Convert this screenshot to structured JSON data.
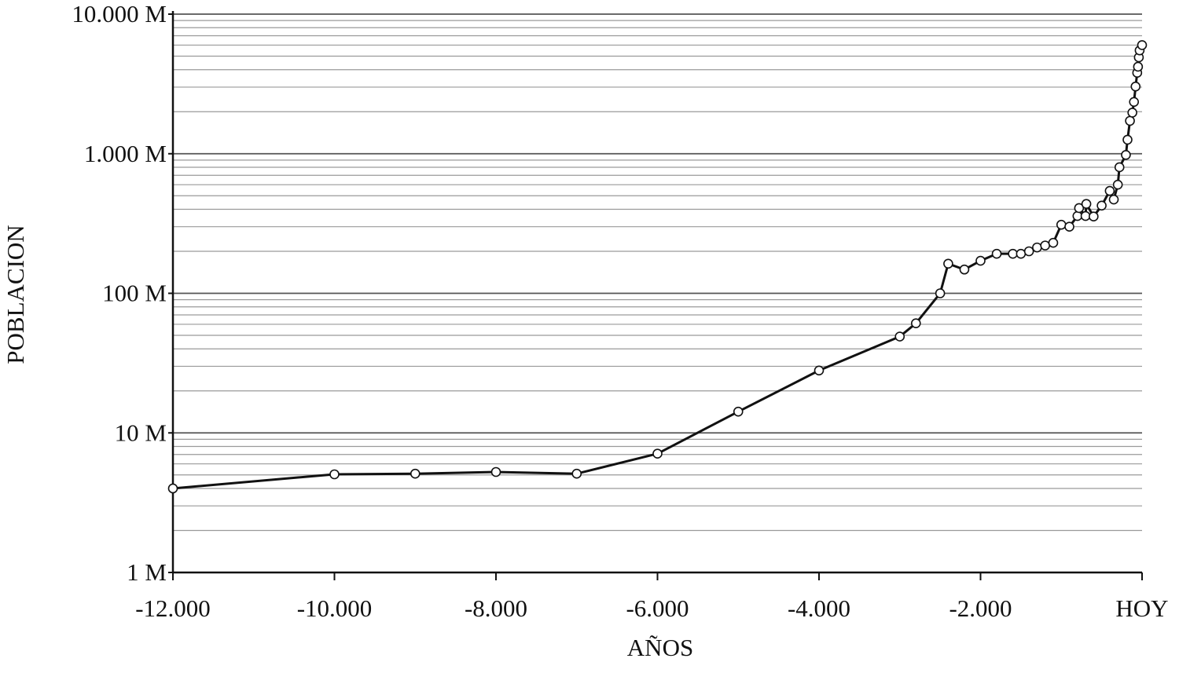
{
  "chart_data": {
    "type": "line",
    "x_label": "AÑOS",
    "y_label": "POBLACION",
    "log_y": true,
    "grid": true,
    "x": [
      -12000,
      -10000,
      -9000,
      -8000,
      -7000,
      -6000,
      -5000,
      -4000,
      -3000,
      -2800,
      -2500,
      -2400,
      -2200,
      -2000,
      -1800,
      -1600,
      -1500,
      -1400,
      -1300,
      -1200,
      -1100,
      -1000,
      -900,
      -800,
      -780,
      -700,
      -690,
      -600,
      -500,
      -400,
      -350,
      -300,
      -280,
      -200,
      -180,
      -150,
      -120,
      -100,
      -80,
      -60,
      -50,
      -40,
      -30,
      0
    ],
    "series": [
      {
        "name": "Población",
        "color": "#111111",
        "values": [
          4.0,
          5.05,
          5.1,
          5.25,
          5.1,
          7.1,
          14.2,
          28,
          49,
          61,
          100,
          163,
          148,
          171,
          192,
          192,
          192,
          200,
          213,
          220,
          230,
          310,
          300,
          358,
          408,
          358,
          437,
          355,
          425,
          542,
          470,
          600,
          800,
          980,
          1260,
          1720,
          1970,
          2350,
          3030,
          3800,
          4200,
          4900,
          5500,
          6000
        ]
      }
    ],
    "xlim": [
      -12000,
      0
    ],
    "ylim": [
      1,
      10000
    ],
    "xticks": [
      {
        "value": -12000,
        "label": "-12.000"
      },
      {
        "value": -10000,
        "label": "-10.000"
      },
      {
        "value": -8000,
        "label": "-8.000"
      },
      {
        "value": -6000,
        "label": "-6.000"
      },
      {
        "value": -4000,
        "label": "-4.000"
      },
      {
        "value": -2000,
        "label": "-2.000"
      },
      {
        "value": 0,
        "label": "HOY"
      }
    ],
    "yticks": [
      {
        "value": 1,
        "label": "1 M"
      },
      {
        "value": 10,
        "label": "10 M"
      },
      {
        "value": 100,
        "label": "100 M"
      },
      {
        "value": 1000,
        "label": "1.000 M"
      },
      {
        "value": 10000,
        "label": "10.000 M"
      }
    ],
    "minor_yticks": [
      2,
      3,
      4,
      5,
      6,
      7,
      8,
      9,
      20,
      30,
      40,
      50,
      60,
      70,
      80,
      90,
      200,
      300,
      400,
      500,
      600,
      700,
      800,
      900,
      2000,
      3000,
      4000,
      5000,
      6000,
      7000,
      8000,
      9000
    ]
  }
}
